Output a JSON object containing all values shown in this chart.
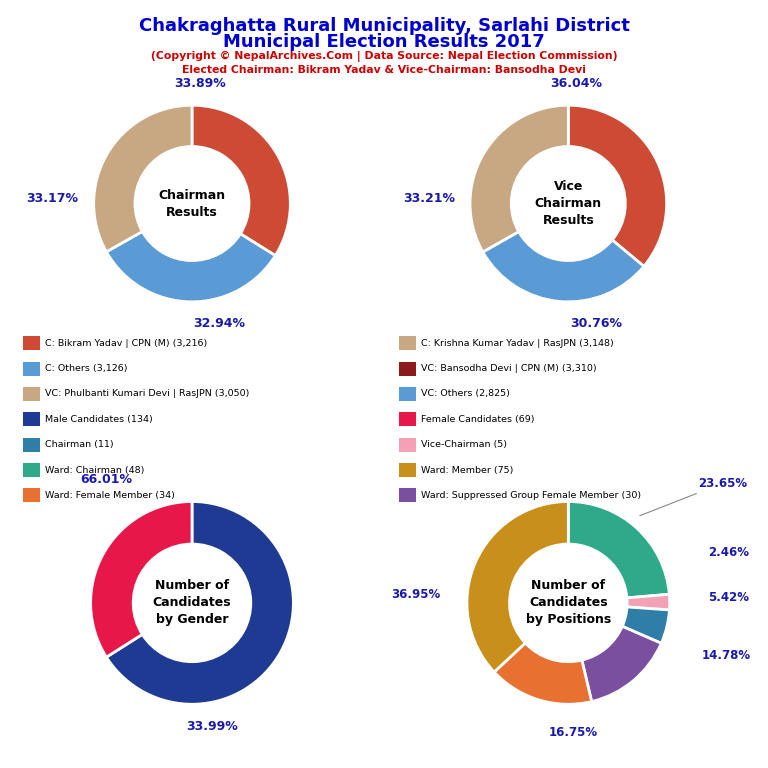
{
  "title_line1": "Chakraghatta Rural Municipality, Sarlahi District",
  "title_line2": "Municipal Election Results 2017",
  "subtitle1": "(Copyright © NepalArchives.Com | Data Source: Nepal Election Commission)",
  "subtitle2": "Elected Chairman: Bikram Yadav & Vice-Chairman: Bansodha Devi",
  "title_color": "#0000cc",
  "subtitle_color": "#cc0000",
  "chairman_values": [
    33.89,
    32.94,
    33.17
  ],
  "chairman_colors": [
    "#cd4a35",
    "#5b9bd5",
    "#c8a882"
  ],
  "chairman_center_text": "Chairman\nResults",
  "vc_values": [
    36.04,
    30.76,
    33.21
  ],
  "vc_colors": [
    "#cd4a35",
    "#5b9bd5",
    "#c8a882"
  ],
  "vc_center_text": "Vice\nChairman\nResults",
  "gender_values": [
    66.01,
    33.99
  ],
  "gender_colors": [
    "#1f3a93",
    "#e8174a"
  ],
  "gender_center_text": "Number of\nCandidates\nby Gender",
  "positions_values": [
    23.65,
    2.46,
    5.42,
    14.78,
    16.75,
    36.95
  ],
  "positions_colors": [
    "#2eaa8a",
    "#f4a0b5",
    "#2e7ea8",
    "#7b4fa0",
    "#e87030",
    "#c8901a"
  ],
  "positions_center_text": "Number of\nCandidates\nby Positions",
  "legend_items_left": [
    {
      "label": "C: Bikram Yadav | CPN (M) (3,216)",
      "color": "#cd4a35"
    },
    {
      "label": "C: Others (3,126)",
      "color": "#5b9bd5"
    },
    {
      "label": "VC: Phulbanti Kumari Devi | RasJPN (3,050)",
      "color": "#c8a882"
    },
    {
      "label": "Male Candidates (134)",
      "color": "#1f3a93"
    },
    {
      "label": "Chairman (11)",
      "color": "#2e7ea8"
    },
    {
      "label": "Ward: Chairman (48)",
      "color": "#2eaa8a"
    },
    {
      "label": "Ward: Female Member (34)",
      "color": "#e87030"
    }
  ],
  "legend_items_right": [
    {
      "label": "C: Krishna Kumar Yadav | RasJPN (3,148)",
      "color": "#c8a882"
    },
    {
      "label": "VC: Bansodha Devi | CPN (M) (3,310)",
      "color": "#8b1a1a"
    },
    {
      "label": "VC: Others (2,825)",
      "color": "#5b9bd5"
    },
    {
      "label": "Female Candidates (69)",
      "color": "#e8174a"
    },
    {
      "label": "Vice-Chairman (5)",
      "color": "#f4a0b5"
    },
    {
      "label": "Ward: Member (75)",
      "color": "#c8901a"
    },
    {
      "label": "Ward: Suppressed Group Female Member (30)",
      "color": "#7b4fa0"
    }
  ]
}
